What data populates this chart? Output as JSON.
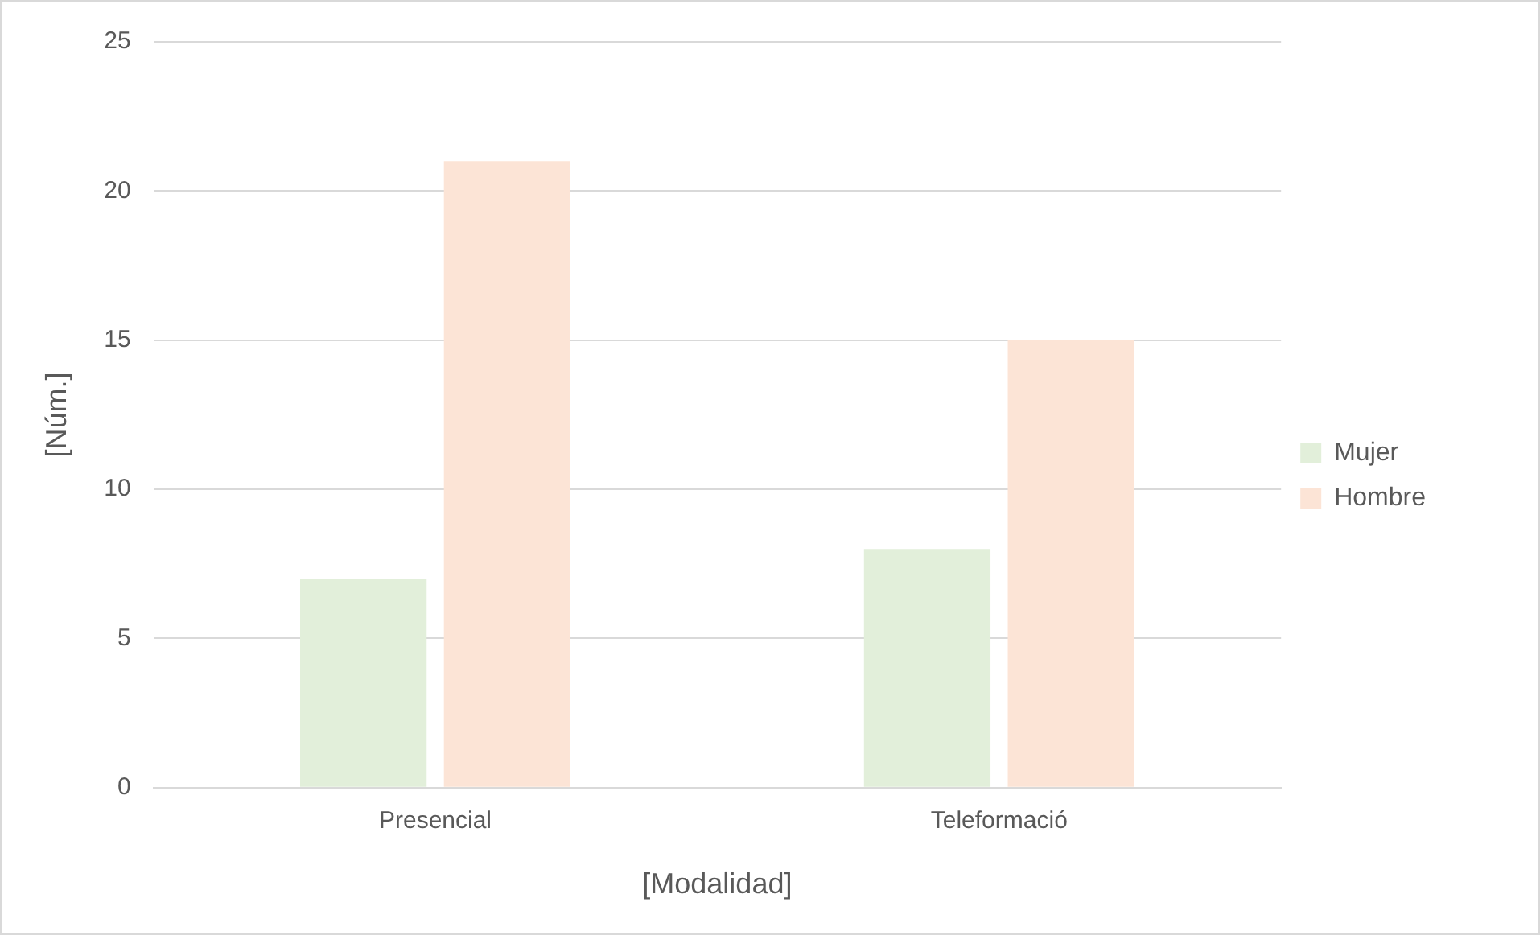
{
  "chart_data": {
    "type": "bar",
    "xlabel": "[Modalidad]",
    "ylabel": "[Núm.]",
    "categories": [
      "Presencial",
      "Teleformació"
    ],
    "series": [
      {
        "name": "Mujer",
        "color": "#e2efda",
        "values": [
          7,
          8
        ]
      },
      {
        "name": "Hombre",
        "color": "#fce4d6",
        "values": [
          21,
          15
        ]
      }
    ],
    "ylim": [
      0,
      25
    ],
    "yticks": [
      0,
      5,
      10,
      15,
      20,
      25
    ],
    "grid": "y",
    "legend": "right"
  }
}
